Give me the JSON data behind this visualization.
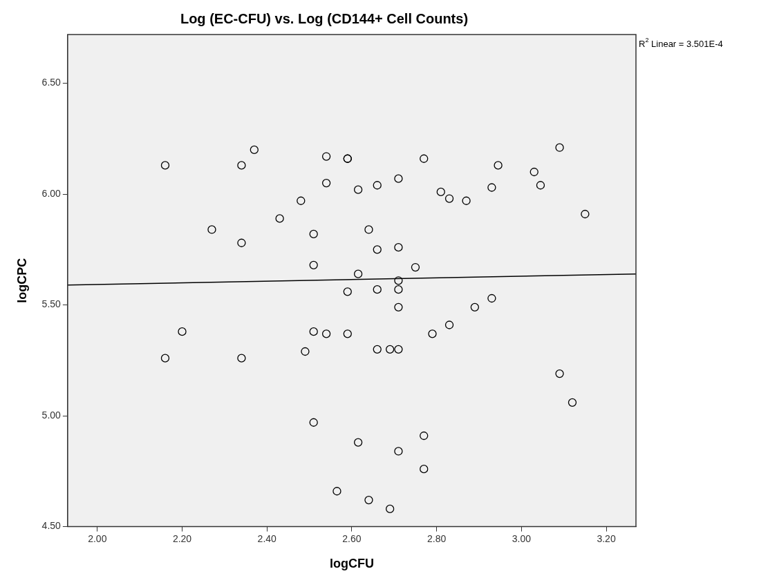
{
  "chart_data": {
    "type": "scatter",
    "title": "Log (EC-CFU) vs. Log (CD144+ Cell Counts)",
    "xlabel": "logCFU",
    "ylabel": "logCPC",
    "annotations": [
      "R$^{2}$ Linear = 3.501E-4"
    ],
    "series": [
      {
        "color": "#000000",
        "x": [
          2.16,
          2.37,
          2.34,
          2.48,
          2.43,
          2.27,
          2.34,
          2.2,
          2.54,
          2.59,
          2.59,
          2.77,
          2.54,
          2.615,
          2.66,
          2.71,
          2.81,
          2.83,
          2.87,
          2.93,
          2.945,
          3.03,
          3.045,
          3.09,
          3.15,
          2.51,
          2.51,
          2.64,
          2.66,
          2.71,
          2.75,
          2.615,
          2.71,
          2.59,
          2.66,
          2.71,
          2.71,
          2.89,
          2.93,
          2.16,
          2.34,
          2.49,
          2.51,
          2.54,
          2.59,
          2.66,
          2.69,
          2.71,
          2.79,
          2.83,
          3.09,
          3.12,
          2.51,
          2.615,
          2.71,
          2.77,
          2.77,
          2.565,
          2.64,
          2.69
        ],
        "values": [
          6.13,
          6.2,
          6.13,
          5.97,
          5.89,
          5.84,
          5.78,
          5.38,
          6.17,
          6.16,
          6.16,
          6.16,
          6.05,
          6.02,
          6.04,
          6.07,
          6.01,
          5.98,
          5.97,
          6.03,
          6.13,
          6.1,
          6.04,
          6.21,
          5.91,
          5.82,
          5.68,
          5.84,
          5.75,
          5.76,
          5.67,
          5.64,
          5.61,
          5.56,
          5.57,
          5.57,
          5.49,
          5.49,
          5.53,
          5.26,
          5.26,
          5.29,
          5.38,
          5.37,
          5.37,
          5.3,
          5.3,
          5.3,
          5.37,
          5.41,
          5.19,
          5.06,
          4.97,
          4.88,
          4.84,
          4.91,
          4.76,
          4.66,
          4.62,
          4.58
        ]
      },
      {
        "type": "line",
        "marker": "none",
        "color": "#000000",
        "x": [
          1.93,
          3.27
        ],
        "values": [
          5.59,
          5.64
        ]
      }
    ],
    "xlim": [
      1.93,
      3.27
    ],
    "ylim": [
      4.5,
      6.72
    ],
    "xticks": [
      {
        "value": 2,
        "label": "2.00"
      },
      {
        "value": 2.2,
        "label": "2.20"
      },
      {
        "value": 2.4,
        "label": "2.40"
      },
      {
        "value": 2.6,
        "label": "2.60"
      },
      {
        "value": 2.8,
        "label": "2.80"
      },
      {
        "value": 3,
        "label": "3.00"
      },
      {
        "value": 3.2,
        "label": "3.20"
      }
    ],
    "yticks": [
      {
        "value": 4.5,
        "label": "4.50"
      },
      {
        "value": 5,
        "label": "5.00"
      },
      {
        "value": 5.5,
        "label": "5.50"
      },
      {
        "value": 6,
        "label": "6.00"
      },
      {
        "value": 6.5,
        "label": "6.50"
      }
    ],
    "grid": false,
    "legend": false,
    "marker": "circle"
  }
}
